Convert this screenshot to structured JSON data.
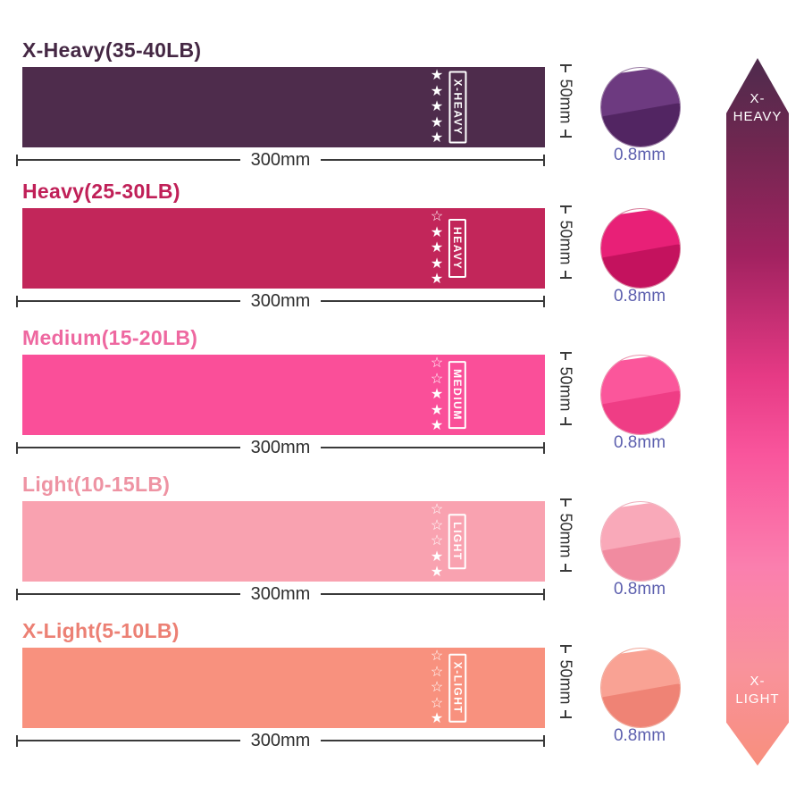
{
  "page": {
    "background": "#ffffff"
  },
  "dims": {
    "width": "300mm",
    "height": "50mm",
    "thickness": "0.8mm"
  },
  "text_colors": {
    "dimension": "#2e2e2e",
    "thickness": "#5c5fae"
  },
  "bands": [
    {
      "title": "X-Heavy(35-40LB)",
      "label": "X-HEAVY",
      "stars": "★\n★\n★\n★\n★",
      "band_color": "#4e2c4c",
      "title_color": "#452844",
      "circle": {
        "main": "#6d3a80",
        "shade": "#522562",
        "border": "#9b7da5"
      }
    },
    {
      "title": "Heavy(25-30LB)",
      "label": "HEAVY",
      "stars": "☆\n★\n★\n★\n★",
      "band_color": "#c2265a",
      "title_color": "#c02058",
      "circle": {
        "main": "#e82077",
        "shade": "#c4125e",
        "border": "#d87d9b"
      }
    },
    {
      "title": "Medium(15-20LB)",
      "label": "MEDIUM",
      "stars": "☆\n☆\n★\n★\n★",
      "band_color": "#fa4f99",
      "title_color": "#ee68a0",
      "circle": {
        "main": "#fb569b",
        "shade": "#ef3d85",
        "border": "#eb93ad"
      }
    },
    {
      "title": "Light(10-15LB)",
      "label": "LIGHT",
      "stars": "☆\n☆\n☆\n★\n★",
      "band_color": "#f9a2b0",
      "title_color": "#ee93a3",
      "circle": {
        "main": "#f9a9b9",
        "shade": "#f18ba0",
        "border": "#efaebb"
      }
    },
    {
      "title": "X-Light(5-10LB)",
      "label": "X-LIGHT",
      "stars": "☆\n☆\n☆\n☆\n★",
      "band_color": "#f8917e",
      "title_color": "#ec8074",
      "circle": {
        "main": "#f9a294",
        "shade": "#ef8375",
        "border": "#f0a899"
      }
    }
  ],
  "arrow": {
    "top_label_line1": "X-",
    "top_label_line2": "HEAVY",
    "bottom_label_line1": "X-",
    "bottom_label_line2": "LIGHT",
    "gradient_stops": [
      "#4e2b4d 0%",
      "#6f2750 12%",
      "#a22260 28%",
      "#e63a85 45%",
      "#f9559c 56%",
      "#fa7fae 72%",
      "#f9929c 86%",
      "#f88f7d 100%"
    ]
  }
}
